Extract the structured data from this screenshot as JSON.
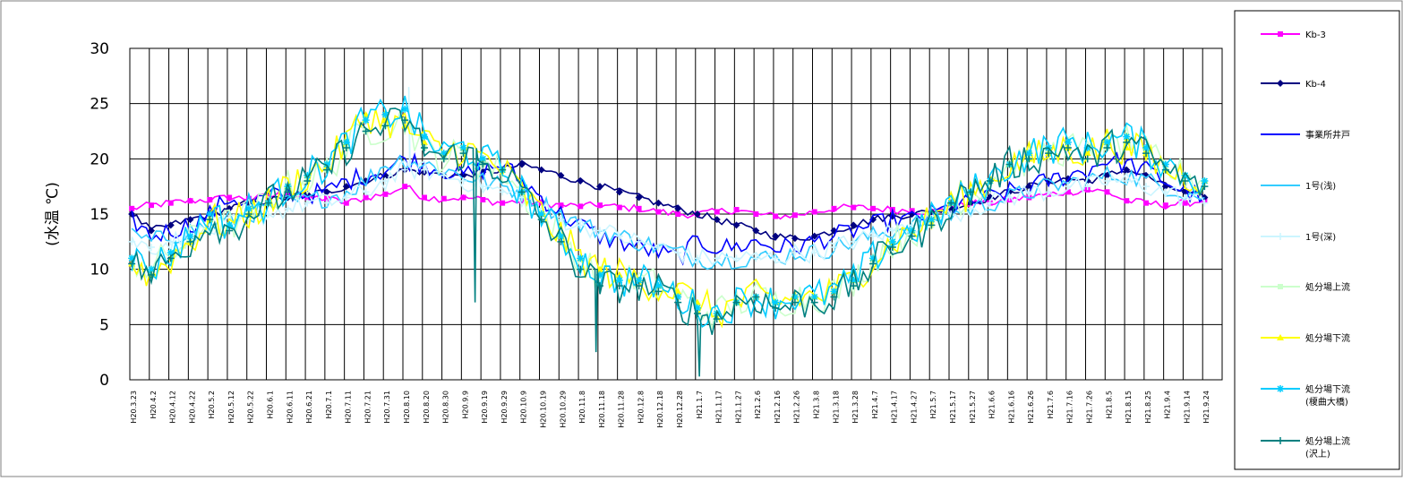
{
  "chart_data": {
    "type": "line",
    "ylabel": "(水温 ℃)",
    "ylim": [
      0,
      30
    ],
    "yticks": [
      0,
      5,
      10,
      15,
      20,
      25,
      30
    ],
    "grid": true,
    "legend_placement": "right",
    "x_tick_labels": [
      "H20.3.23",
      "H20.4.2",
      "H20.4.12",
      "H20.4.22",
      "H20.5.2",
      "H20.5.12",
      "H20.5.22",
      "H20.6.1",
      "H20.6.11",
      "H20.6.21",
      "H20.7.1",
      "H20.7.11",
      "H20.7.21",
      "H20.7.31",
      "H20.8.10",
      "H20.8.20",
      "H20.8.30",
      "H20.9.9",
      "H20.9.19",
      "H20.9.29",
      "H20.10.9",
      "H20.10.19",
      "H20.10.29",
      "H20.11.8",
      "H20.11.18",
      "H20.11.28",
      "H20.12.8",
      "H20.12.18",
      "H20.12.28",
      "H21.1.7",
      "H21.1.17",
      "H21.1.27",
      "H21.2.6",
      "H21.2.16",
      "H21.2.26",
      "H21.3.8",
      "H21.3.18",
      "H21.3.28",
      "H21.4.7",
      "H21.4.17",
      "H21.4.27",
      "H21.5.7",
      "H21.5.17",
      "H21.5.27",
      "H21.6.6",
      "H21.6.16",
      "H21.6.26",
      "H21.7.6",
      "H21.7.16",
      "H21.7.26",
      "H21.8.5",
      "H21.8.15",
      "H21.8.25",
      "H21.9.4",
      "H21.9.14",
      "H21.9.24"
    ],
    "series": [
      {
        "name": "Kb-3",
        "color": "#ff00ff",
        "marker": "square",
        "values": [
          15.5,
          15.8,
          16.0,
          16.2,
          16.3,
          16.5,
          16.4,
          16.6,
          16.8,
          16.5,
          16.4,
          16.0,
          16.5,
          16.8,
          17.5,
          16.5,
          16.4,
          16.5,
          16.3,
          16.0,
          16.2,
          16.0,
          15.8,
          15.7,
          15.8,
          15.6,
          15.5,
          15.2,
          15.0,
          15.0,
          15.2,
          15.4,
          15.0,
          14.8,
          14.9,
          15.2,
          15.5,
          15.6,
          15.5,
          15.4,
          15.3,
          15.2,
          15.5,
          16.0,
          16.0,
          16.3,
          16.5,
          16.8,
          17.0,
          17.2,
          17.0,
          16.2,
          16.0,
          15.8,
          16.0,
          16.2
        ]
      },
      {
        "name": "Kb-4",
        "color": "#000080",
        "marker": "diamond",
        "values": [
          15.0,
          13.5,
          14.0,
          14.5,
          15.0,
          15.5,
          16.0,
          16.2,
          16.5,
          16.8,
          17.0,
          17.5,
          18.0,
          18.5,
          19.0,
          18.8,
          18.5,
          18.5,
          18.8,
          19.0,
          19.5,
          19.0,
          18.5,
          18.0,
          17.5,
          17.0,
          16.5,
          16.0,
          15.5,
          15.0,
          14.5,
          14.0,
          13.5,
          13.0,
          12.8,
          13.0,
          13.5,
          14.0,
          14.5,
          14.8,
          15.0,
          15.2,
          15.5,
          16.0,
          16.5,
          17.0,
          17.5,
          18.0,
          18.2,
          18.0,
          18.5,
          19.0,
          18.5,
          17.5,
          17.0,
          16.5
        ]
      },
      {
        "name": "事業所井戸",
        "color": "#0000ff",
        "marker": "none",
        "values": [
          14.5,
          13.0,
          13.5,
          14.0,
          15.0,
          16.5,
          16.0,
          16.5,
          17.0,
          16.8,
          17.0,
          18.0,
          18.5,
          19.0,
          20.0,
          19.5,
          19.0,
          18.5,
          19.0,
          19.5,
          18.0,
          16.5,
          15.0,
          14.0,
          13.0,
          12.5,
          12.0,
          11.5,
          11.0,
          12.5,
          12.0,
          12.0,
          12.5,
          12.0,
          12.0,
          12.5,
          13.0,
          13.5,
          14.0,
          14.5,
          14.5,
          15.0,
          15.5,
          16.0,
          16.5,
          17.0,
          17.5,
          18.0,
          18.5,
          19.0,
          20.0,
          19.5,
          19.0,
          18.0,
          17.0,
          16.5
        ]
      },
      {
        "name": "1号(浅)",
        "color": "#33ccff",
        "marker": "none",
        "values": [
          13.0,
          12.5,
          13.0,
          13.5,
          14.0,
          14.5,
          15.0,
          15.5,
          16.0,
          16.2,
          16.5,
          17.0,
          18.0,
          19.5,
          20.0,
          19.5,
          19.0,
          18.5,
          18.0,
          17.5,
          17.0,
          16.0,
          15.0,
          14.0,
          13.5,
          13.0,
          12.5,
          12.0,
          11.5,
          11.0,
          10.8,
          11.0,
          11.0,
          11.0,
          11.5,
          11.5,
          12.0,
          12.5,
          13.0,
          13.5,
          14.0,
          14.5,
          15.0,
          15.5,
          16.0,
          16.5,
          17.0,
          17.5,
          17.8,
          18.0,
          18.5,
          18.5,
          18.0,
          17.5,
          17.0,
          16.5
        ]
      },
      {
        "name": "1号(深)",
        "color": "#ccf5ff",
        "marker": "plus",
        "values": [
          12.5,
          12.0,
          12.5,
          13.0,
          13.5,
          14.0,
          14.5,
          15.0,
          15.5,
          16.0,
          16.0,
          16.5,
          17.0,
          18.0,
          19.0,
          19.0,
          18.5,
          18.0,
          17.5,
          17.0,
          16.5,
          15.5,
          14.5,
          14.0,
          13.5,
          13.0,
          12.5,
          12.0,
          11.5,
          11.0,
          11.0,
          11.0,
          11.0,
          11.0,
          11.5,
          11.5,
          12.0,
          12.5,
          13.0,
          13.5,
          14.0,
          14.5,
          15.0,
          15.5,
          16.0,
          16.5,
          17.0,
          17.0,
          17.5,
          17.5,
          18.0,
          18.0,
          17.5,
          17.0,
          16.5,
          16.0
        ]
      },
      {
        "name": "処分場上流",
        "color": "#ccffcc",
        "marker": "square",
        "values": [
          11.0,
          10.0,
          11.5,
          12.5,
          14.5,
          14.0,
          15.0,
          16.0,
          17.5,
          18.0,
          19.0,
          21.0,
          22.5,
          23.0,
          23.5,
          21.0,
          20.0,
          20.5,
          19.5,
          19.0,
          17.0,
          15.0,
          13.0,
          11.0,
          9.5,
          9.0,
          9.0,
          8.5,
          7.5,
          6.5,
          6.0,
          7.0,
          7.5,
          7.0,
          7.5,
          7.5,
          8.0,
          9.0,
          11.0,
          12.5,
          13.5,
          14.0,
          16.0,
          17.0,
          18.0,
          19.5,
          20.0,
          20.5,
          21.0,
          20.5,
          21.0,
          21.5,
          20.5,
          19.0,
          18.5,
          18.0
        ]
      },
      {
        "name": "処分場下流",
        "color": "#ffff00",
        "marker": "triangle",
        "values": [
          10.5,
          9.5,
          11.0,
          12.5,
          14.5,
          14.0,
          15.0,
          16.0,
          17.5,
          18.5,
          19.5,
          21.5,
          24.0,
          23.5,
          23.0,
          21.5,
          20.5,
          21.0,
          20.0,
          19.0,
          17.0,
          15.0,
          13.0,
          11.0,
          10.0,
          9.5,
          9.0,
          8.5,
          8.0,
          7.0,
          6.0,
          7.0,
          7.5,
          7.0,
          7.5,
          7.5,
          8.0,
          9.0,
          11.0,
          12.5,
          13.5,
          14.5,
          16.0,
          17.0,
          18.0,
          19.5,
          20.0,
          20.5,
          21.0,
          20.5,
          21.5,
          21.0,
          20.5,
          19.0,
          18.5,
          18.0
        ]
      },
      {
        "name": "処分場下流(榎曲大橋)",
        "color": "#00ccff",
        "marker": "star",
        "values": [
          11.0,
          10.0,
          11.5,
          13.0,
          15.0,
          14.0,
          15.5,
          16.0,
          17.5,
          18.5,
          19.5,
          21.5,
          23.5,
          24.0,
          24.5,
          22.0,
          20.5,
          21.0,
          20.0,
          19.0,
          17.0,
          15.0,
          13.0,
          11.0,
          9.5,
          9.0,
          9.0,
          8.5,
          7.5,
          6.5,
          6.0,
          7.0,
          7.5,
          7.0,
          7.5,
          7.5,
          8.0,
          9.0,
          11.0,
          12.5,
          13.5,
          14.5,
          16.0,
          17.0,
          18.0,
          19.5,
          20.5,
          21.0,
          21.5,
          21.0,
          21.5,
          22.0,
          21.0,
          19.5,
          18.5,
          18.0
        ]
      },
      {
        "name": "処分場上流(沢上)",
        "color": "#008080",
        "marker": "plus",
        "values": [
          10.5,
          9.5,
          11.0,
          12.5,
          14.5,
          13.5,
          15.0,
          16.0,
          17.0,
          18.0,
          19.0,
          21.0,
          22.5,
          23.0,
          23.5,
          21.0,
          20.0,
          20.5,
          19.5,
          19.0,
          17.0,
          14.5,
          12.5,
          10.0,
          8.5,
          8.5,
          8.5,
          8.0,
          7.0,
          6.0,
          5.5,
          7.0,
          7.5,
          6.5,
          7.0,
          7.0,
          7.5,
          8.5,
          10.5,
          12.0,
          13.0,
          14.0,
          16.0,
          17.0,
          18.0,
          19.5,
          20.0,
          20.5,
          21.0,
          20.0,
          21.0,
          21.5,
          20.5,
          19.0,
          18.0,
          17.5
        ]
      }
    ],
    "spikes": [
      {
        "series": "処分場上流(沢上)",
        "x_index": 17.6,
        "value": 7.0
      },
      {
        "series": "処分場上流(沢上)",
        "x_index": 23.8,
        "value": 2.5
      },
      {
        "series": "処分場上流(沢上)",
        "x_index": 29.1,
        "value": 0.3
      },
      {
        "series": "1号(深)",
        "x_index": 14.2,
        "value": 26.5
      }
    ]
  }
}
